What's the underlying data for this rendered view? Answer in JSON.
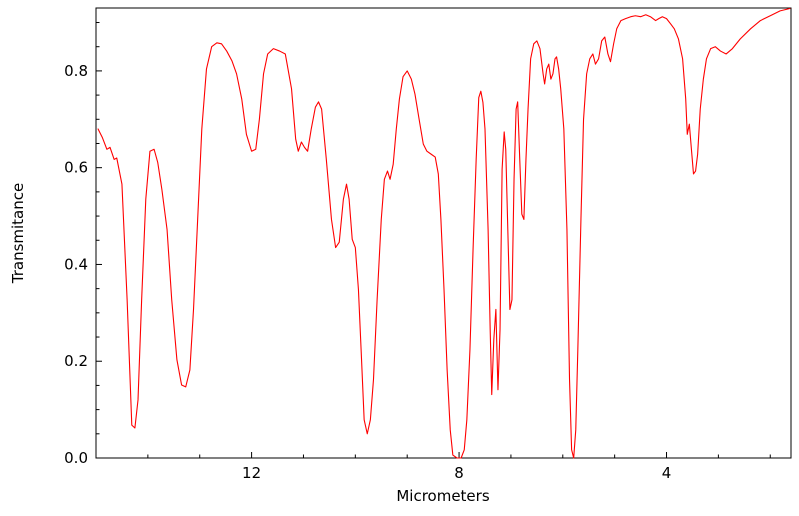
{
  "chart_data": {
    "type": "line",
    "title": "",
    "xlabel": "Micrometers",
    "ylabel": "Transmitance",
    "line_color": "#ff0000",
    "background_color": "#ffffff",
    "grid": false,
    "legend": false,
    "x_axis": {
      "min": 15.0,
      "max": 1.6,
      "reversed": true,
      "major_ticks": [
        12,
        8,
        4
      ],
      "major_tick_labels": [
        "12",
        "8",
        "4"
      ],
      "minor_ticks": [
        14,
        13,
        11,
        10,
        9,
        7,
        6,
        5,
        3,
        2
      ]
    },
    "y_axis": {
      "min": 0.0,
      "max": 0.93,
      "major_ticks": [
        0.0,
        0.2,
        0.4,
        0.6,
        0.8
      ],
      "major_tick_labels": [
        "0.0",
        "0.2",
        "0.4",
        "0.6",
        "0.8"
      ],
      "minor_ticks": [
        0.05,
        0.1,
        0.15,
        0.25,
        0.3,
        0.35,
        0.45,
        0.5,
        0.55,
        0.65,
        0.7,
        0.75,
        0.85,
        0.9
      ]
    },
    "series": [
      {
        "name": "ir-spectrum-line",
        "color": "#ff0000",
        "points": [
          [
            14.96,
            0.68
          ],
          [
            14.88,
            0.663
          ],
          [
            14.79,
            0.638
          ],
          [
            14.73,
            0.642
          ],
          [
            14.65,
            0.617
          ],
          [
            14.6,
            0.62
          ],
          [
            14.5,
            0.566
          ],
          [
            14.4,
            0.327
          ],
          [
            14.31,
            0.068
          ],
          [
            14.25,
            0.062
          ],
          [
            14.19,
            0.12
          ],
          [
            14.12,
            0.327
          ],
          [
            14.04,
            0.535
          ],
          [
            13.96,
            0.634
          ],
          [
            13.88,
            0.638
          ],
          [
            13.81,
            0.611
          ],
          [
            13.73,
            0.555
          ],
          [
            13.63,
            0.472
          ],
          [
            13.54,
            0.327
          ],
          [
            13.44,
            0.203
          ],
          [
            13.35,
            0.151
          ],
          [
            13.27,
            0.147
          ],
          [
            13.19,
            0.182
          ],
          [
            13.12,
            0.307
          ],
          [
            13.04,
            0.493
          ],
          [
            12.96,
            0.68
          ],
          [
            12.87,
            0.804
          ],
          [
            12.77,
            0.85
          ],
          [
            12.67,
            0.858
          ],
          [
            12.58,
            0.856
          ],
          [
            12.48,
            0.841
          ],
          [
            12.38,
            0.821
          ],
          [
            12.29,
            0.794
          ],
          [
            12.19,
            0.742
          ],
          [
            12.1,
            0.669
          ],
          [
            12.0,
            0.634
          ],
          [
            11.92,
            0.638
          ],
          [
            11.85,
            0.7
          ],
          [
            11.77,
            0.794
          ],
          [
            11.69,
            0.835
          ],
          [
            11.58,
            0.846
          ],
          [
            11.46,
            0.841
          ],
          [
            11.35,
            0.835
          ],
          [
            11.23,
            0.763
          ],
          [
            11.15,
            0.659
          ],
          [
            11.1,
            0.634
          ],
          [
            11.04,
            0.653
          ],
          [
            10.98,
            0.642
          ],
          [
            10.92,
            0.634
          ],
          [
            10.85,
            0.68
          ],
          [
            10.77,
            0.725
          ],
          [
            10.71,
            0.736
          ],
          [
            10.65,
            0.721
          ],
          [
            10.56,
            0.618
          ],
          [
            10.46,
            0.493
          ],
          [
            10.38,
            0.435
          ],
          [
            10.31,
            0.446
          ],
          [
            10.23,
            0.535
          ],
          [
            10.17,
            0.566
          ],
          [
            10.12,
            0.535
          ],
          [
            10.06,
            0.452
          ],
          [
            10.0,
            0.435
          ],
          [
            9.94,
            0.348
          ],
          [
            9.88,
            0.203
          ],
          [
            9.83,
            0.079
          ],
          [
            9.77,
            0.05
          ],
          [
            9.71,
            0.079
          ],
          [
            9.65,
            0.162
          ],
          [
            9.58,
            0.327
          ],
          [
            9.5,
            0.493
          ],
          [
            9.44,
            0.576
          ],
          [
            9.38,
            0.593
          ],
          [
            9.33,
            0.576
          ],
          [
            9.27,
            0.607
          ],
          [
            9.21,
            0.68
          ],
          [
            9.15,
            0.742
          ],
          [
            9.08,
            0.788
          ],
          [
            9.0,
            0.8
          ],
          [
            8.92,
            0.783
          ],
          [
            8.85,
            0.752
          ],
          [
            8.77,
            0.7
          ],
          [
            8.69,
            0.649
          ],
          [
            8.62,
            0.634
          ],
          [
            8.54,
            0.628
          ],
          [
            8.46,
            0.622
          ],
          [
            8.4,
            0.587
          ],
          [
            8.35,
            0.493
          ],
          [
            8.29,
            0.348
          ],
          [
            8.23,
            0.182
          ],
          [
            8.17,
            0.058
          ],
          [
            8.12,
            0.006
          ],
          [
            8.04,
            0.0
          ],
          [
            7.96,
            0.0
          ],
          [
            7.9,
            0.017
          ],
          [
            7.85,
            0.079
          ],
          [
            7.79,
            0.224
          ],
          [
            7.73,
            0.431
          ],
          [
            7.67,
            0.618
          ],
          [
            7.62,
            0.745
          ],
          [
            7.58,
            0.758
          ],
          [
            7.54,
            0.735
          ],
          [
            7.5,
            0.68
          ],
          [
            7.44,
            0.472
          ],
          [
            7.4,
            0.265
          ],
          [
            7.37,
            0.131
          ],
          [
            7.33,
            0.245
          ],
          [
            7.29,
            0.307
          ],
          [
            7.25,
            0.141
          ],
          [
            7.21,
            0.265
          ],
          [
            7.17,
            0.597
          ],
          [
            7.13,
            0.674
          ],
          [
            7.1,
            0.638
          ],
          [
            7.06,
            0.472
          ],
          [
            7.02,
            0.307
          ],
          [
            6.98,
            0.327
          ],
          [
            6.94,
            0.576
          ],
          [
            6.9,
            0.721
          ],
          [
            6.87,
            0.736
          ],
          [
            6.83,
            0.618
          ],
          [
            6.79,
            0.504
          ],
          [
            6.75,
            0.493
          ],
          [
            6.71,
            0.618
          ],
          [
            6.67,
            0.721
          ],
          [
            6.62,
            0.825
          ],
          [
            6.56,
            0.856
          ],
          [
            6.5,
            0.862
          ],
          [
            6.44,
            0.846
          ],
          [
            6.38,
            0.794
          ],
          [
            6.35,
            0.773
          ],
          [
            6.31,
            0.804
          ],
          [
            6.27,
            0.814
          ],
          [
            6.23,
            0.783
          ],
          [
            6.19,
            0.794
          ],
          [
            6.15,
            0.825
          ],
          [
            6.12,
            0.829
          ],
          [
            6.08,
            0.804
          ],
          [
            6.04,
            0.763
          ],
          [
            5.98,
            0.68
          ],
          [
            5.92,
            0.472
          ],
          [
            5.87,
            0.162
          ],
          [
            5.83,
            0.017
          ],
          [
            5.79,
            0.0
          ],
          [
            5.75,
            0.058
          ],
          [
            5.71,
            0.224
          ],
          [
            5.65,
            0.493
          ],
          [
            5.6,
            0.7
          ],
          [
            5.54,
            0.794
          ],
          [
            5.48,
            0.825
          ],
          [
            5.42,
            0.835
          ],
          [
            5.37,
            0.814
          ],
          [
            5.31,
            0.825
          ],
          [
            5.25,
            0.862
          ],
          [
            5.19,
            0.87
          ],
          [
            5.13,
            0.835
          ],
          [
            5.08,
            0.819
          ],
          [
            5.02,
            0.856
          ],
          [
            4.96,
            0.887
          ],
          [
            4.88,
            0.904
          ],
          [
            4.79,
            0.908
          ],
          [
            4.69,
            0.912
          ],
          [
            4.6,
            0.914
          ],
          [
            4.5,
            0.912
          ],
          [
            4.4,
            0.916
          ],
          [
            4.31,
            0.912
          ],
          [
            4.21,
            0.904
          ],
          [
            4.15,
            0.908
          ],
          [
            4.08,
            0.912
          ],
          [
            4.0,
            0.908
          ],
          [
            3.92,
            0.897
          ],
          [
            3.85,
            0.887
          ],
          [
            3.77,
            0.866
          ],
          [
            3.69,
            0.825
          ],
          [
            3.63,
            0.742
          ],
          [
            3.6,
            0.669
          ],
          [
            3.56,
            0.69
          ],
          [
            3.52,
            0.638
          ],
          [
            3.48,
            0.587
          ],
          [
            3.44,
            0.593
          ],
          [
            3.4,
            0.628
          ],
          [
            3.35,
            0.721
          ],
          [
            3.29,
            0.783
          ],
          [
            3.23,
            0.825
          ],
          [
            3.15,
            0.846
          ],
          [
            3.06,
            0.85
          ],
          [
            2.96,
            0.841
          ],
          [
            2.85,
            0.835
          ],
          [
            2.73,
            0.846
          ],
          [
            2.58,
            0.866
          ],
          [
            2.38,
            0.887
          ],
          [
            2.19,
            0.904
          ],
          [
            2.0,
            0.914
          ],
          [
            1.81,
            0.924
          ],
          [
            1.62,
            0.929
          ]
        ]
      }
    ]
  }
}
